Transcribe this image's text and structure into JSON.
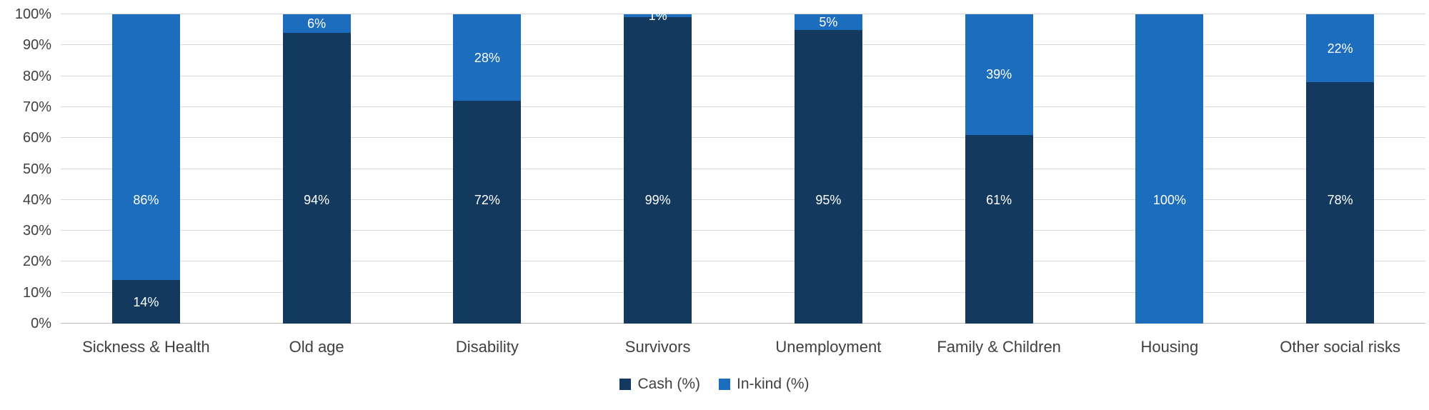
{
  "chart_data": {
    "type": "bar",
    "stacked": true,
    "percent_stacked": true,
    "title": "",
    "xlabel": "",
    "ylabel": "",
    "categories": [
      "Sickness & Health",
      "Old age",
      "Disability",
      "Survivors",
      "Unemployment",
      "Family & Children",
      "Housing",
      "Other social risks"
    ],
    "series": [
      {
        "name": "Cash (%)",
        "color": "#133A5E",
        "values": [
          14,
          94,
          72,
          99,
          95,
          61,
          0,
          78
        ],
        "data_labels": [
          "14%",
          "94%",
          "72%",
          "99%",
          "95%",
          "61%",
          "",
          "78%"
        ]
      },
      {
        "name": "In-kind (%)",
        "color": "#1C6DBE",
        "values": [
          86,
          6,
          28,
          1,
          5,
          39,
          100,
          22
        ],
        "data_labels": [
          "86%",
          "6%",
          "28%",
          "1%",
          "5%",
          "39%",
          "100%",
          "22%"
        ]
      }
    ],
    "ylim": [
      0,
      100
    ],
    "y_tick_labels": [
      "0%",
      "10%",
      "20%",
      "30%",
      "40%",
      "50%",
      "60%",
      "70%",
      "80%",
      "90%",
      "100%"
    ],
    "grid": true,
    "legend_position": "bottom"
  },
  "style": {
    "gridline_color": "#D9D9D9",
    "axis_line_color": "#BFBFBF",
    "tick_label_color": "#3f3f3f",
    "data_label_color": "#FFFFFF",
    "background": "#FFFFFF"
  },
  "legend": {
    "items": [
      {
        "label": "Cash (%)",
        "color": "#133A5E"
      },
      {
        "label": "In-kind (%)",
        "color": "#1C6DBE"
      }
    ]
  }
}
